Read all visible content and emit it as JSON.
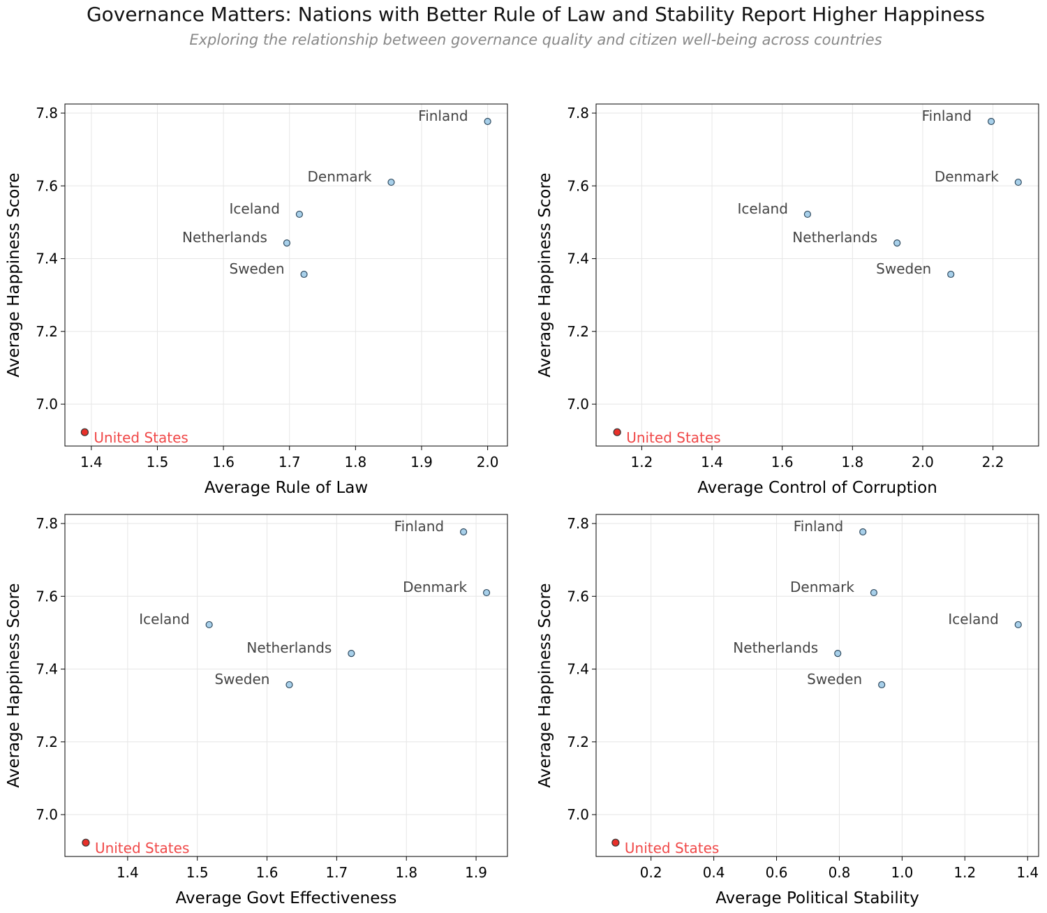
{
  "title": "Governance Matters: Nations with Better Rule of Law and Stability Report Higher Happiness",
  "subtitle": "Exploring the relationship between governance quality and citizen well-being across countries",
  "colors": {
    "point": "#a8d0ea",
    "highlight": "#e8302a",
    "highlight_label": "#f04848",
    "label": "#444444",
    "edge": "#2f4a5f",
    "grid": "#e6e6e6"
  },
  "chart_data": [
    {
      "type": "scatter",
      "xlabel": "Average Rule of Law",
      "ylabel": "Average Happiness Score",
      "xlim": [
        1.36,
        2.03
      ],
      "ylim": [
        6.885,
        7.825
      ],
      "xticks": [
        1.4,
        1.5,
        1.6,
        1.7,
        1.8,
        1.9,
        2.0
      ],
      "yticks": [
        7.0,
        7.2,
        7.4,
        7.6,
        7.8
      ],
      "grid": true,
      "points": [
        {
          "label": "Finland",
          "x": 2.0,
          "y": 7.777
        },
        {
          "label": "Denmark",
          "x": 1.854,
          "y": 7.61
        },
        {
          "label": "Iceland",
          "x": 1.715,
          "y": 7.522
        },
        {
          "label": "Netherlands",
          "x": 1.696,
          "y": 7.443
        },
        {
          "label": "Sweden",
          "x": 1.722,
          "y": 7.357
        },
        {
          "label": "United States",
          "x": 1.39,
          "y": 6.923,
          "highlight": true
        }
      ]
    },
    {
      "type": "scatter",
      "xlabel": "Average Control of Corruption",
      "ylabel": "Average Happiness Score",
      "xlim": [
        1.07,
        2.33
      ],
      "ylim": [
        6.885,
        7.825
      ],
      "xticks": [
        1.2,
        1.4,
        1.6,
        1.8,
        2.0,
        2.2
      ],
      "yticks": [
        7.0,
        7.2,
        7.4,
        7.6,
        7.8
      ],
      "grid": true,
      "points": [
        {
          "label": "Finland",
          "x": 2.195,
          "y": 7.777
        },
        {
          "label": "Denmark",
          "x": 2.272,
          "y": 7.61
        },
        {
          "label": "Iceland",
          "x": 1.672,
          "y": 7.522
        },
        {
          "label": "Netherlands",
          "x": 1.927,
          "y": 7.443
        },
        {
          "label": "Sweden",
          "x": 2.08,
          "y": 7.357
        },
        {
          "label": "United States",
          "x": 1.13,
          "y": 6.923,
          "highlight": true
        }
      ]
    },
    {
      "type": "scatter",
      "xlabel": "Average Govt Effectiveness",
      "ylabel": "Average Happiness Score",
      "xlim": [
        1.31,
        1.945
      ],
      "ylim": [
        6.885,
        7.825
      ],
      "xticks": [
        1.4,
        1.5,
        1.6,
        1.7,
        1.8,
        1.9
      ],
      "yticks": [
        7.0,
        7.2,
        7.4,
        7.6,
        7.8
      ],
      "grid": true,
      "points": [
        {
          "label": "Finland",
          "x": 1.882,
          "y": 7.777
        },
        {
          "label": "Denmark",
          "x": 1.915,
          "y": 7.61
        },
        {
          "label": "Iceland",
          "x": 1.517,
          "y": 7.522
        },
        {
          "label": "Netherlands",
          "x": 1.721,
          "y": 7.443
        },
        {
          "label": "Sweden",
          "x": 1.632,
          "y": 7.357
        },
        {
          "label": "United States",
          "x": 1.34,
          "y": 6.923,
          "highlight": true
        }
      ]
    },
    {
      "type": "scatter",
      "xlabel": "Average Political Stability",
      "ylabel": "Average Happiness Score",
      "xlim": [
        0.025,
        1.435
      ],
      "ylim": [
        6.885,
        7.825
      ],
      "xticks": [
        0.2,
        0.4,
        0.6,
        0.8,
        1.0,
        1.2,
        1.4
      ],
      "yticks": [
        7.0,
        7.2,
        7.4,
        7.6,
        7.8
      ],
      "grid": true,
      "points": [
        {
          "label": "Finland",
          "x": 0.875,
          "y": 7.777
        },
        {
          "label": "Denmark",
          "x": 0.91,
          "y": 7.61
        },
        {
          "label": "Iceland",
          "x": 1.37,
          "y": 7.522
        },
        {
          "label": "Netherlands",
          "x": 0.795,
          "y": 7.443
        },
        {
          "label": "Sweden",
          "x": 0.935,
          "y": 7.357
        },
        {
          "label": "United States",
          "x": 0.087,
          "y": 6.923,
          "highlight": true
        }
      ]
    }
  ]
}
